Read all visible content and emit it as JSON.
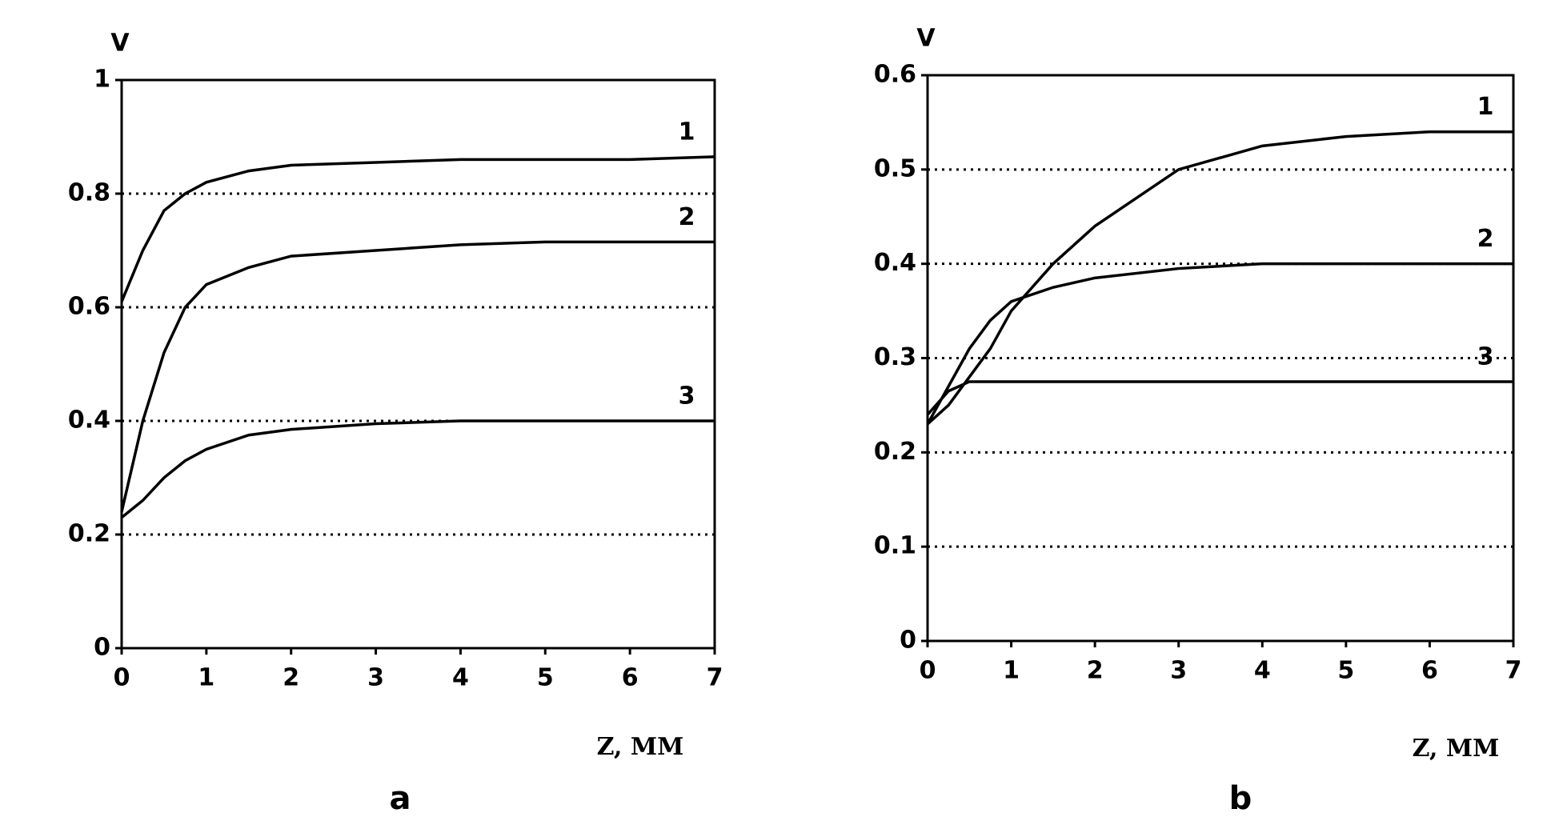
{
  "chart_data": [
    {
      "type": "line",
      "y_label": "V",
      "x_label": "Z, MM",
      "caption": "a",
      "x": [
        0,
        0.25,
        0.5,
        0.75,
        1,
        1.5,
        2,
        3,
        4,
        5,
        6,
        7
      ],
      "series": [
        {
          "name": "1",
          "color": "#000000",
          "values": [
            0.61,
            0.7,
            0.77,
            0.8,
            0.82,
            0.84,
            0.85,
            0.855,
            0.86,
            0.86,
            0.86,
            0.865
          ]
        },
        {
          "name": "2",
          "color": "#000000",
          "values": [
            0.24,
            0.4,
            0.52,
            0.6,
            0.64,
            0.67,
            0.69,
            0.7,
            0.71,
            0.715,
            0.715,
            0.715
          ]
        },
        {
          "name": "3",
          "color": "#000000",
          "values": [
            0.23,
            0.26,
            0.3,
            0.33,
            0.35,
            0.375,
            0.385,
            0.395,
            0.4,
            0.4,
            0.4,
            0.4
          ]
        }
      ],
      "xlim": [
        0,
        7
      ],
      "xticks": [
        0,
        1,
        2,
        3,
        4,
        5,
        6,
        7
      ],
      "ylim": [
        0,
        1
      ],
      "yticks": [
        0,
        0.2,
        0.4,
        0.6,
        0.8,
        1
      ],
      "grid": true
    },
    {
      "type": "line",
      "y_label": "V",
      "x_label": "Z, MM",
      "caption": "b",
      "x": [
        0,
        0.25,
        0.5,
        0.75,
        1,
        1.5,
        2,
        3,
        4,
        5,
        6,
        7
      ],
      "series": [
        {
          "name": "1",
          "color": "#000000",
          "values": [
            0.23,
            0.25,
            0.28,
            0.31,
            0.35,
            0.4,
            0.44,
            0.5,
            0.525,
            0.535,
            0.54,
            0.54
          ]
        },
        {
          "name": "2",
          "color": "#000000",
          "values": [
            0.23,
            0.27,
            0.31,
            0.34,
            0.36,
            0.375,
            0.385,
            0.395,
            0.4,
            0.4,
            0.4,
            0.4
          ]
        },
        {
          "name": "3",
          "color": "#000000",
          "values": [
            0.24,
            0.265,
            0.275,
            0.275,
            0.275,
            0.275,
            0.275,
            0.275,
            0.275,
            0.275,
            0.275,
            0.275
          ]
        }
      ],
      "xlim": [
        0,
        7
      ],
      "xticks": [
        0,
        1,
        2,
        3,
        4,
        5,
        6,
        7
      ],
      "ylim": [
        0,
        0.6
      ],
      "yticks": [
        0,
        0.1,
        0.2,
        0.3,
        0.4,
        0.5,
        0.6
      ],
      "grid": true
    }
  ]
}
